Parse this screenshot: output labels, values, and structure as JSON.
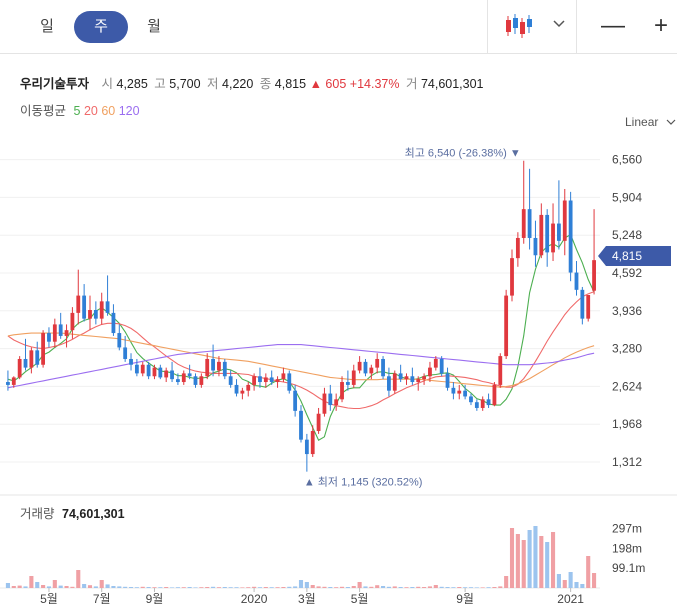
{
  "tabs": [
    "일",
    "주",
    "월"
  ],
  "active_tab": "주",
  "window": {
    "minimize": "—",
    "zoom": "+"
  },
  "stock": {
    "name": "우리기술투자",
    "open_label": "시",
    "open": "4,285",
    "high_label": "고",
    "high": "5,700",
    "low_label": "저",
    "low": "4,220",
    "close_label": "종",
    "close": "4,815",
    "change_arrow": "▲",
    "change": "605",
    "change_pct": "+14.37%",
    "volume_label": "거",
    "volume": "74,601,301"
  },
  "moving_average": {
    "label": "이동평균",
    "periods": [
      {
        "name": "5",
        "color": "#4caf50"
      },
      {
        "name": "20",
        "color": "#f06a6a"
      },
      {
        "name": "60",
        "color": "#f0a060"
      },
      {
        "name": "120",
        "color": "#9b6ef0"
      }
    ]
  },
  "scale_type": "Linear",
  "volume_panel": {
    "label": "거래량",
    "value": "74,601,301"
  },
  "colors": {
    "up": "#e0383e",
    "down": "#2f7fd6",
    "accent": "#3d5aa8",
    "vol_up": "#f0a0a4",
    "vol_down": "#9cc4ee"
  },
  "chart_data": {
    "type": "candlestick",
    "price_axis": {
      "ticks": [
        "6,560",
        "5,904",
        "5,248",
        "4,592",
        "3,936",
        "3,280",
        "2,624",
        "1,968",
        "1,312"
      ],
      "range": [
        1000,
        6900
      ]
    },
    "last_price": "4,815",
    "high_annotation": "최고 6,540 (-26.38%)",
    "low_annotation": "최저 1,145 (320.52%)",
    "volume_axis": {
      "ticks": [
        "297m",
        "198m",
        "99.1m"
      ],
      "max": 340
    },
    "x_labels": [
      {
        "label": "5월",
        "index": 7
      },
      {
        "label": "7월",
        "index": 16
      },
      {
        "label": "9월",
        "index": 25
      },
      {
        "label": "2020",
        "index": 42
      },
      {
        "label": "3월",
        "index": 51
      },
      {
        "label": "5월",
        "index": 60
      },
      {
        "label": "9월",
        "index": 78
      },
      {
        "label": "2021",
        "index": 96
      }
    ],
    "ohlc": [
      [
        2700,
        2900,
        2550,
        2650
      ],
      [
        2650,
        2800,
        2600,
        2780
      ],
      [
        2780,
        3150,
        2750,
        3100
      ],
      [
        3100,
        3450,
        2900,
        2950
      ],
      [
        2950,
        3300,
        2850,
        3250
      ],
      [
        3250,
        3400,
        2950,
        3000
      ],
      [
        3000,
        3600,
        2950,
        3550
      ],
      [
        3550,
        3650,
        3300,
        3400
      ],
      [
        3400,
        3800,
        3300,
        3700
      ],
      [
        3700,
        3900,
        3450,
        3500
      ],
      [
        3500,
        3700,
        3300,
        3600
      ],
      [
        3600,
        4000,
        3450,
        3900
      ],
      [
        3900,
        4650,
        3700,
        4200
      ],
      [
        4200,
        4400,
        3750,
        3800
      ],
      [
        3800,
        4200,
        3600,
        3950
      ],
      [
        3950,
        4100,
        3700,
        3800
      ],
      [
        3800,
        4250,
        3700,
        4100
      ],
      [
        4100,
        4550,
        3850,
        3900
      ],
      [
        3900,
        4050,
        3500,
        3550
      ],
      [
        3550,
        3700,
        3250,
        3300
      ],
      [
        3300,
        3500,
        3050,
        3100
      ],
      [
        3100,
        3200,
        2900,
        3000
      ],
      [
        3000,
        3100,
        2800,
        2850
      ],
      [
        2850,
        3050,
        2800,
        3000
      ],
      [
        3000,
        3050,
        2750,
        2800
      ],
      [
        2800,
        3000,
        2750,
        2950
      ],
      [
        2950,
        3000,
        2750,
        2780
      ],
      [
        2780,
        2950,
        2700,
        2900
      ],
      [
        2900,
        3050,
        2700,
        2750
      ],
      [
        2750,
        2850,
        2650,
        2700
      ],
      [
        2700,
        2900,
        2650,
        2850
      ],
      [
        2850,
        3000,
        2750,
        2800
      ],
      [
        2800,
        2850,
        2600,
        2650
      ],
      [
        2650,
        2850,
        2600,
        2800
      ],
      [
        2800,
        3200,
        2750,
        3100
      ],
      [
        3100,
        3350,
        2800,
        2900
      ],
      [
        2900,
        3150,
        2800,
        3050
      ],
      [
        3050,
        3100,
        2750,
        2800
      ],
      [
        2800,
        2900,
        2600,
        2650
      ],
      [
        2650,
        2750,
        2450,
        2500
      ],
      [
        2500,
        2600,
        2400,
        2550
      ],
      [
        2550,
        2700,
        2450,
        2650
      ],
      [
        2650,
        2850,
        2550,
        2800
      ],
      [
        2800,
        2950,
        2600,
        2700
      ],
      [
        2700,
        2850,
        2600,
        2780
      ],
      [
        2780,
        2900,
        2650,
        2700
      ],
      [
        2700,
        2800,
        2600,
        2750
      ],
      [
        2750,
        2950,
        2700,
        2850
      ],
      [
        2850,
        2900,
        2500,
        2550
      ],
      [
        2550,
        2650,
        2100,
        2200
      ],
      [
        2200,
        2300,
        1650,
        1700
      ],
      [
        1700,
        1800,
        1145,
        1450
      ],
      [
        1450,
        1950,
        1400,
        1850
      ],
      [
        1850,
        2250,
        1800,
        2150
      ],
      [
        2150,
        2600,
        2100,
        2500
      ],
      [
        2500,
        2650,
        2200,
        2300
      ],
      [
        2300,
        2500,
        2200,
        2400
      ],
      [
        2400,
        2800,
        2350,
        2700
      ],
      [
        2700,
        2900,
        2550,
        2650
      ],
      [
        2650,
        3000,
        2600,
        2900
      ],
      [
        2900,
        3150,
        2850,
        3050
      ],
      [
        3050,
        3100,
        2800,
        2850
      ],
      [
        2850,
        3000,
        2750,
        2950
      ],
      [
        2950,
        3200,
        2850,
        3100
      ],
      [
        3100,
        3150,
        2750,
        2800
      ],
      [
        2800,
        2950,
        2450,
        2550
      ],
      [
        2550,
        2900,
        2500,
        2850
      ],
      [
        2850,
        3000,
        2700,
        2750
      ],
      [
        2750,
        2850,
        2650,
        2800
      ],
      [
        2800,
        2950,
        2650,
        2700
      ],
      [
        2700,
        2800,
        2550,
        2750
      ],
      [
        2750,
        2850,
        2650,
        2800
      ],
      [
        2800,
        3050,
        2700,
        2950
      ],
      [
        2950,
        3150,
        2900,
        3100
      ],
      [
        3100,
        3150,
        2800,
        2850
      ],
      [
        2850,
        2950,
        2550,
        2600
      ],
      [
        2600,
        2700,
        2400,
        2500
      ],
      [
        2500,
        2650,
        2400,
        2550
      ],
      [
        2550,
        2650,
        2400,
        2450
      ],
      [
        2450,
        2500,
        2300,
        2350
      ],
      [
        2350,
        2400,
        2200,
        2250
      ],
      [
        2250,
        2450,
        2200,
        2400
      ],
      [
        2400,
        2500,
        2250,
        2300
      ],
      [
        2300,
        2700,
        2280,
        2650
      ],
      [
        2650,
        3200,
        2600,
        3150
      ],
      [
        3150,
        4300,
        3100,
        4200
      ],
      [
        4200,
        5000,
        4100,
        4850
      ],
      [
        4850,
        5300,
        4700,
        5200
      ],
      [
        5200,
        6540,
        5100,
        5700
      ],
      [
        5700,
        6400,
        5000,
        5200
      ],
      [
        5200,
        5500,
        4700,
        4900
      ],
      [
        4900,
        5800,
        4850,
        5600
      ],
      [
        5600,
        5700,
        4700,
        4950
      ],
      [
        4950,
        5800,
        4800,
        5450
      ],
      [
        5450,
        6200,
        5000,
        5150
      ],
      [
        5150,
        6050,
        4900,
        5850
      ],
      [
        5850,
        6000,
        4450,
        4600
      ],
      [
        4600,
        4800,
        4200,
        4300
      ],
      [
        4300,
        4350,
        3700,
        3800
      ],
      [
        3800,
        4200,
        3750,
        4210
      ],
      [
        4285,
        5700,
        4220,
        4815
      ]
    ],
    "volume": [
      25,
      10,
      12,
      8,
      60,
      30,
      15,
      8,
      40,
      12,
      10,
      6,
      90,
      20,
      14,
      8,
      40,
      18,
      10,
      8,
      6,
      5,
      4,
      6,
      5,
      4,
      4,
      5,
      3,
      4,
      4,
      5,
      3,
      4,
      5,
      6,
      4,
      5,
      4,
      4,
      3,
      4,
      6,
      4,
      5,
      4,
      4,
      5,
      6,
      8,
      40,
      30,
      15,
      8,
      6,
      5,
      4,
      6,
      5,
      10,
      30,
      8,
      6,
      14,
      10,
      6,
      8,
      5,
      4,
      5,
      6,
      5,
      8,
      15,
      6,
      5,
      4,
      5,
      4,
      4,
      3,
      3,
      4,
      5,
      8,
      60,
      300,
      270,
      240,
      290,
      310,
      260,
      230,
      280,
      70,
      40,
      80,
      30,
      20,
      160,
      75
    ],
    "series": [
      {
        "name": "5",
        "values": [
          2750,
          2720,
          2790,
          2880,
          2950,
          3030,
          3170,
          3220,
          3300,
          3370,
          3450,
          3620,
          3720,
          3770,
          3800,
          3930,
          3990,
          3910,
          3820,
          3720,
          3570,
          3390,
          3210,
          3110,
          3030,
          2960,
          2890,
          2880,
          2860,
          2810,
          2810,
          2780,
          2760,
          2770,
          2780,
          2860,
          2890,
          2930,
          2910,
          2860,
          2750,
          2710,
          2640,
          2630,
          2610,
          2680,
          2730,
          2760,
          2710,
          2560,
          2370,
          2130,
          1910,
          1690,
          1750,
          2100,
          2320,
          2510,
          2580,
          2600,
          2600,
          2720,
          2810,
          2870,
          2880,
          2850,
          2850,
          2790,
          2760,
          2740,
          2760,
          2800,
          2820,
          2830,
          2850,
          2860,
          2820,
          2710,
          2590,
          2510,
          2410,
          2380,
          2320,
          2300,
          2300,
          2400,
          2580,
          2970,
          3500,
          4250,
          4660,
          4950,
          5050,
          5100,
          5040,
          5200,
          5260,
          5000,
          4770,
          4480,
          4260
        ]
      },
      {
        "name": "20",
        "values": [
          3500,
          3430,
          3380,
          3340,
          3310,
          3290,
          3280,
          3300,
          3320,
          3350,
          3390,
          3440,
          3500,
          3550,
          3610,
          3660,
          3700,
          3720,
          3720,
          3710,
          3680,
          3630,
          3560,
          3470,
          3380,
          3310,
          3230,
          3150,
          3080,
          3010,
          2960,
          2920,
          2890,
          2870,
          2860,
          2850,
          2850,
          2850,
          2850,
          2850,
          2840,
          2830,
          2800,
          2780,
          2760,
          2740,
          2720,
          2700,
          2680,
          2650,
          2610,
          2560,
          2500,
          2430,
          2370,
          2320,
          2290,
          2270,
          2250,
          2240,
          2240,
          2260,
          2290,
          2330,
          2390,
          2440,
          2500,
          2550,
          2600,
          2640,
          2680,
          2720,
          2760,
          2790,
          2800,
          2810,
          2800,
          2790,
          2780,
          2760,
          2740,
          2710,
          2690,
          2660,
          2630,
          2610,
          2610,
          2660,
          2760,
          2900,
          3060,
          3230,
          3410,
          3570,
          3720,
          3870,
          3990,
          4090,
          4180,
          4230,
          4270
        ]
      },
      {
        "name": "60",
        "values": [
          3500,
          3520,
          3530,
          3540,
          3550,
          3550,
          3550,
          3550,
          3550,
          3550,
          3540,
          3530,
          3520,
          3510,
          3500,
          3490,
          3480,
          3470,
          3460,
          3450,
          3430,
          3410,
          3390,
          3370,
          3350,
          3330,
          3310,
          3290,
          3270,
          3250,
          3230,
          3210,
          3190,
          3170,
          3150,
          3130,
          3110,
          3100,
          3090,
          3080,
          3070,
          3060,
          3040,
          3020,
          3000,
          2980,
          2960,
          2940,
          2920,
          2900,
          2880,
          2860,
          2840,
          2820,
          2800,
          2780,
          2770,
          2760,
          2750,
          2740,
          2740,
          2740,
          2740,
          2740,
          2750,
          2750,
          2750,
          2750,
          2750,
          2750,
          2750,
          2740,
          2730,
          2720,
          2710,
          2700,
          2690,
          2680,
          2670,
          2660,
          2650,
          2640,
          2630,
          2620,
          2610,
          2620,
          2640,
          2670,
          2710,
          2760,
          2820,
          2880,
          2940,
          3000,
          3060,
          3120,
          3170,
          3220,
          3260,
          3300,
          3330
        ]
      },
      {
        "name": "120",
        "values": [
          2600,
          2620,
          2640,
          2660,
          2680,
          2700,
          2720,
          2740,
          2760,
          2780,
          2800,
          2820,
          2840,
          2860,
          2880,
          2900,
          2920,
          2940,
          2960,
          2980,
          3000,
          3020,
          3040,
          3060,
          3080,
          3100,
          3120,
          3140,
          3160,
          3180,
          3190,
          3200,
          3210,
          3220,
          3230,
          3240,
          3250,
          3260,
          3270,
          3280,
          3290,
          3300,
          3310,
          3320,
          3330,
          3340,
          3350,
          3350,
          3350,
          3350,
          3350,
          3340,
          3330,
          3320,
          3310,
          3300,
          3290,
          3280,
          3270,
          3260,
          3250,
          3240,
          3230,
          3220,
          3210,
          3200,
          3190,
          3180,
          3170,
          3160,
          3150,
          3140,
          3130,
          3120,
          3110,
          3100,
          3090,
          3080,
          3070,
          3060,
          3050,
          3040,
          3030,
          3020,
          3010,
          3000,
          3000,
          3000,
          3000,
          3000,
          3010,
          3020,
          3030,
          3040,
          3060,
          3080,
          3100,
          3120,
          3150,
          3180,
          3200
        ]
      }
    ]
  }
}
